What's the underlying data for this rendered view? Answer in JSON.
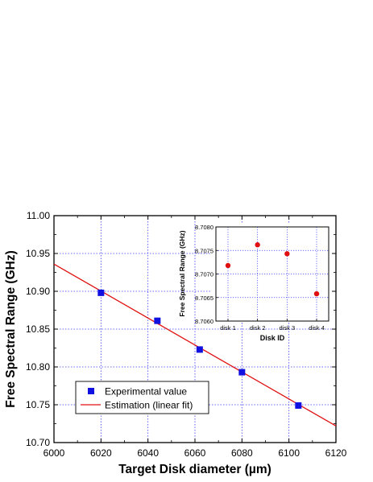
{
  "chart_data": [
    {
      "type": "scatter",
      "title": "",
      "xlabel": "Target Disk diameter (µm)",
      "ylabel": "Free Spectral Range (GHz)",
      "xlim": [
        6000,
        6120
      ],
      "ylim": [
        10.7,
        11.0
      ],
      "x_ticks": [
        "6000",
        "6020",
        "6040",
        "6060",
        "6080",
        "6100",
        "6120"
      ],
      "y_ticks": [
        "10.70",
        "10.75",
        "10.80",
        "10.85",
        "10.90",
        "10.95",
        "11.00"
      ],
      "grid": true,
      "legend_position": "bottom-left",
      "series": [
        {
          "name": "Experimental value",
          "marker": "square",
          "color": "#1010e0",
          "points": [
            {
              "x": 6020,
              "y": 10.898
            },
            {
              "x": 6044,
              "y": 10.861
            },
            {
              "x": 6062,
              "y": 10.823
            },
            {
              "x": 6080,
              "y": 10.793
            },
            {
              "x": 6104,
              "y": 10.749
            }
          ]
        },
        {
          "name": "Estimation (linear fit)",
          "type": "line",
          "color": "#e01010",
          "points": [
            {
              "x": 6000,
              "y": 10.936
            },
            {
              "x": 6120,
              "y": 10.722
            }
          ]
        }
      ]
    },
    {
      "type": "scatter",
      "title": "",
      "xlabel": "Disk ID",
      "ylabel": "Free Spectral Range (GHz)",
      "categories": [
        "disk 1",
        "disk 2",
        "disk 3",
        "disk 4"
      ],
      "ylim": [
        8.706,
        8.708
      ],
      "y_ticks": [
        "8.7060",
        "8.7065",
        "8.7070",
        "8.7075",
        "8.7080"
      ],
      "grid": true,
      "series": [
        {
          "marker": "circle",
          "color": "#e01010",
          "values": [
            8.70718,
            8.70762,
            8.70743,
            8.70658
          ]
        }
      ]
    }
  ]
}
